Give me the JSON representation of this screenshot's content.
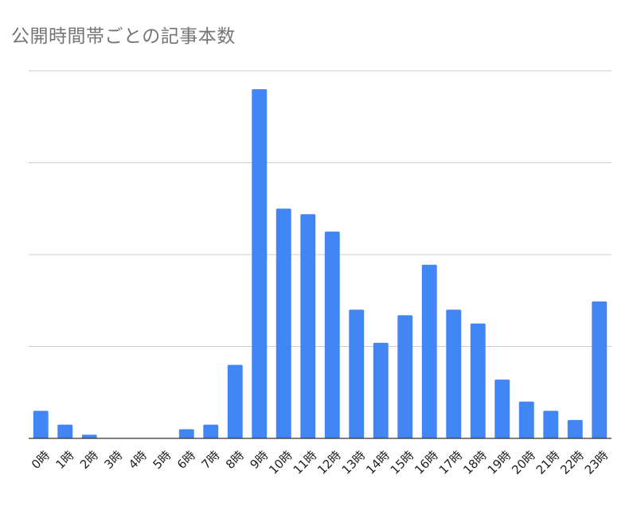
{
  "chart_data": {
    "type": "bar",
    "title": "公開時間帯ごとの記事本数",
    "xlabel": "",
    "ylabel": "",
    "categories": [
      "0時",
      "1時",
      "2時",
      "3時",
      "4時",
      "5時",
      "6時",
      "7時",
      "8時",
      "9時",
      "10時",
      "11時",
      "12時",
      "13時",
      "14時",
      "15時",
      "16時",
      "17時",
      "18時",
      "19時",
      "20時",
      "21時",
      "22時",
      "23時"
    ],
    "values": [
      3,
      1.5,
      0.4,
      0,
      0,
      0,
      1,
      1.5,
      8,
      38,
      25,
      24.4,
      22.5,
      14,
      10.4,
      13.4,
      18.9,
      14,
      12.5,
      6.4,
      4,
      3,
      2,
      14.9
    ],
    "ylim": [
      0,
      40
    ],
    "gridlines": [
      10,
      20,
      30,
      40
    ],
    "grid": true,
    "legend": "none",
    "colors": {
      "bar": "#4285f4",
      "grid": "#cccccc",
      "axis": "#333333",
      "title": "#757575"
    }
  }
}
